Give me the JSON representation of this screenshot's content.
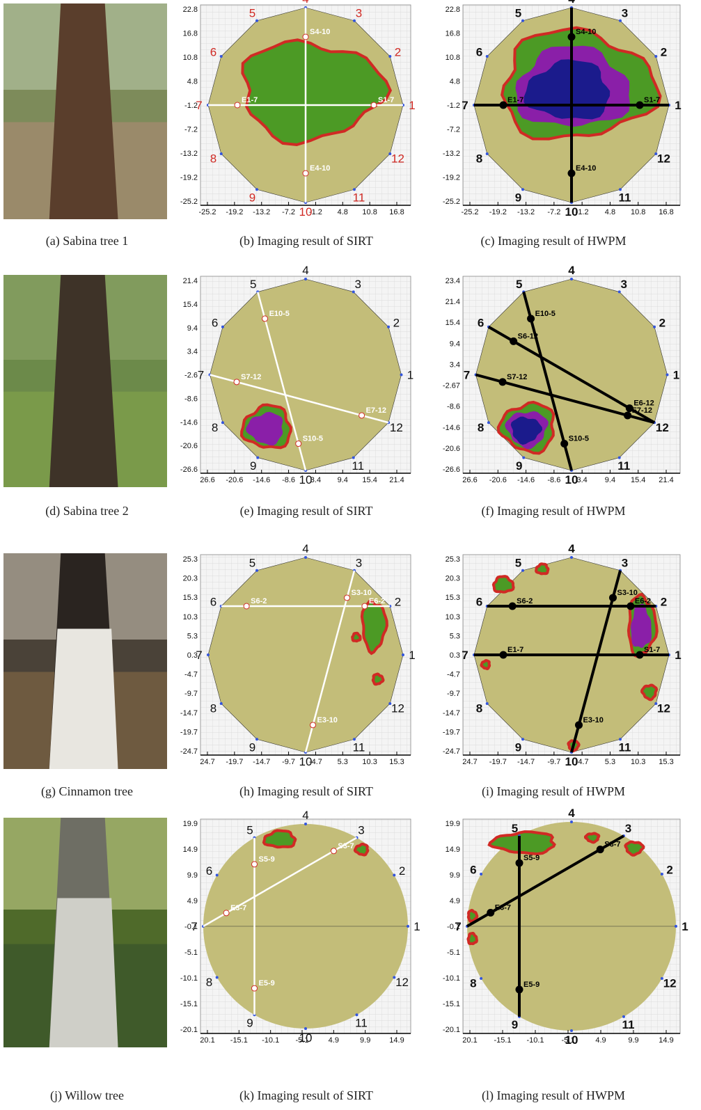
{
  "figure": {
    "panels": [
      {
        "caption": "(a) Sabina tree 1"
      },
      {
        "caption": "(b) Imaging result of SIRT",
        "yticks": [
          "22.8",
          "16.8",
          "10.8",
          "4.8",
          "-1.2",
          "-7.2",
          "-13.2",
          "-19.2",
          "-25.2"
        ],
        "xticks": [
          "-25.2",
          "-19.2",
          "-13.2",
          "-7.2",
          "-1.2",
          "4.8",
          "10.8",
          "16.8"
        ],
        "nodes": [
          "1",
          "2",
          "3",
          "4",
          "5",
          "6",
          "7",
          "8",
          "9",
          "10",
          "11",
          "12"
        ],
        "markers": [
          "S4-10",
          "S1-7",
          "E1-7",
          "E4-10"
        ]
      },
      {
        "caption": "(c) Imaging result of HWPM",
        "yticks": [
          "22.8",
          "16.8",
          "10.8",
          "4.8",
          "-1.2",
          "-7.2",
          "-13.2",
          "-19.2",
          "-25.2"
        ],
        "xticks": [
          "-25.2",
          "-19.2",
          "-13.2",
          "-7.2",
          "-1.2",
          "4.8",
          "10.8",
          "16.8"
        ],
        "nodes": [
          "1",
          "2",
          "3",
          "4",
          "5",
          "6",
          "7",
          "8",
          "9",
          "10",
          "11",
          "12"
        ],
        "markers": [
          "S4-10",
          "S1-7",
          "E1-7",
          "E4-10"
        ]
      },
      {
        "caption": "(d) Sabina tree 2"
      },
      {
        "caption": "(e) Imaging result of SIRT",
        "yticks": [
          "21.4",
          "15.4",
          "9.4",
          "3.4",
          "-2.6",
          "-8.6",
          "-14.6",
          "-20.6",
          "-26.6"
        ],
        "xticks": [
          "26.6",
          "-20.6",
          "-14.6",
          "-8.6",
          "3.4",
          "9.4",
          "15.4",
          "21.4"
        ],
        "nodes": [
          "1",
          "2",
          "3",
          "4",
          "5",
          "6",
          "7",
          "8",
          "9",
          "10",
          "11",
          "12"
        ],
        "markers": [
          "S7-12",
          "E10-5",
          "E7-12",
          "S10-5"
        ]
      },
      {
        "caption": "(f) Imaging result of HWPM",
        "yticks": [
          "23.4",
          "21.4",
          "15.4",
          "9.4",
          "3.4",
          "-2.67",
          "-8.6",
          "-14.6",
          "-20.6",
          "-26.6"
        ],
        "xticks": [
          "26.6",
          "-20.6",
          "-14.6",
          "-8.6",
          "3.4",
          "9.4",
          "15.4",
          "21.4"
        ],
        "nodes": [
          "1",
          "2",
          "3",
          "4",
          "5",
          "6",
          "7",
          "8",
          "9",
          "10",
          "11",
          "12"
        ],
        "markers": [
          "S6-12",
          "E10-5",
          "E6-12",
          "S7-12",
          "E7-12",
          "S10-5"
        ]
      },
      {
        "caption": "(g) Cinnamon tree"
      },
      {
        "caption": "(h) Imaging result of SIRT",
        "yticks": [
          "25.3",
          "20.3",
          "15.3",
          "10.3",
          "5.3",
          "0.3",
          "-4.7",
          "-9.7",
          "-14.7",
          "-19.7",
          "-24.7"
        ],
        "xticks": [
          "24.7",
          "-19.7",
          "-14.7",
          "-9.7",
          "-4.7",
          "5.3",
          "10.3",
          "15.3"
        ],
        "nodes": [
          "1",
          "2",
          "3",
          "4",
          "5",
          "6",
          "7",
          "8",
          "9",
          "10",
          "11",
          "12"
        ],
        "markers": [
          "S6-2",
          "S3-10",
          "E3-10",
          "E6-2"
        ]
      },
      {
        "caption": "(i) Imaging result of HWPM",
        "yticks": [
          "25.3",
          "20.3",
          "15.3",
          "10.3",
          "5.3",
          "0.3",
          "-4.7",
          "-9.7",
          "-14.7",
          "-19.7",
          "-24.7"
        ],
        "xticks": [
          "24.7",
          "-19.7",
          "-14.7",
          "-9.7",
          "-4.7",
          "5.3",
          "10.3",
          "15.3"
        ],
        "nodes": [
          "1",
          "2",
          "3",
          "4",
          "5",
          "6",
          "7",
          "8",
          "9",
          "10",
          "11",
          "12"
        ],
        "markers": [
          "S6-2",
          "E6-2",
          "S3-10",
          "E3-10",
          "E1-7",
          "S1-7"
        ]
      },
      {
        "caption": "(j) Willow tree"
      },
      {
        "caption": "(k) Imaging result of SIRT",
        "yticks": [
          "19.9",
          "14.9",
          "9.9",
          "4.9",
          "-0.1",
          "-5.1",
          "-10.1",
          "-15.1",
          "-20.1"
        ],
        "xticks": [
          "20.1",
          "-15.1",
          "-10.1",
          "-5.1",
          "4.9",
          "9.9",
          "14.9"
        ],
        "nodes": [
          "1",
          "2",
          "3",
          "4",
          "5",
          "6",
          "7",
          "8",
          "9",
          "10",
          "11",
          "12"
        ],
        "markers": [
          "S5-9",
          "E5-9",
          "S3-7",
          "E3-7"
        ]
      },
      {
        "caption": "(l) Imaging result of HWPM",
        "yticks": [
          "19.9",
          "14.9",
          "9.9",
          "4.9",
          "-0.1",
          "-5.1",
          "-10.1",
          "-15.1",
          "-20.1"
        ],
        "xticks": [
          "20.1",
          "-15.1",
          "-10.1",
          "-5.1",
          "4.9",
          "9.9",
          "14.9"
        ],
        "nodes": [
          "1",
          "2",
          "3",
          "4",
          "5",
          "6",
          "7",
          "8",
          "9",
          "10",
          "11",
          "12"
        ],
        "markers": [
          "S5-9",
          "E5-9",
          "S3-7",
          "E3-7"
        ]
      }
    ]
  }
}
